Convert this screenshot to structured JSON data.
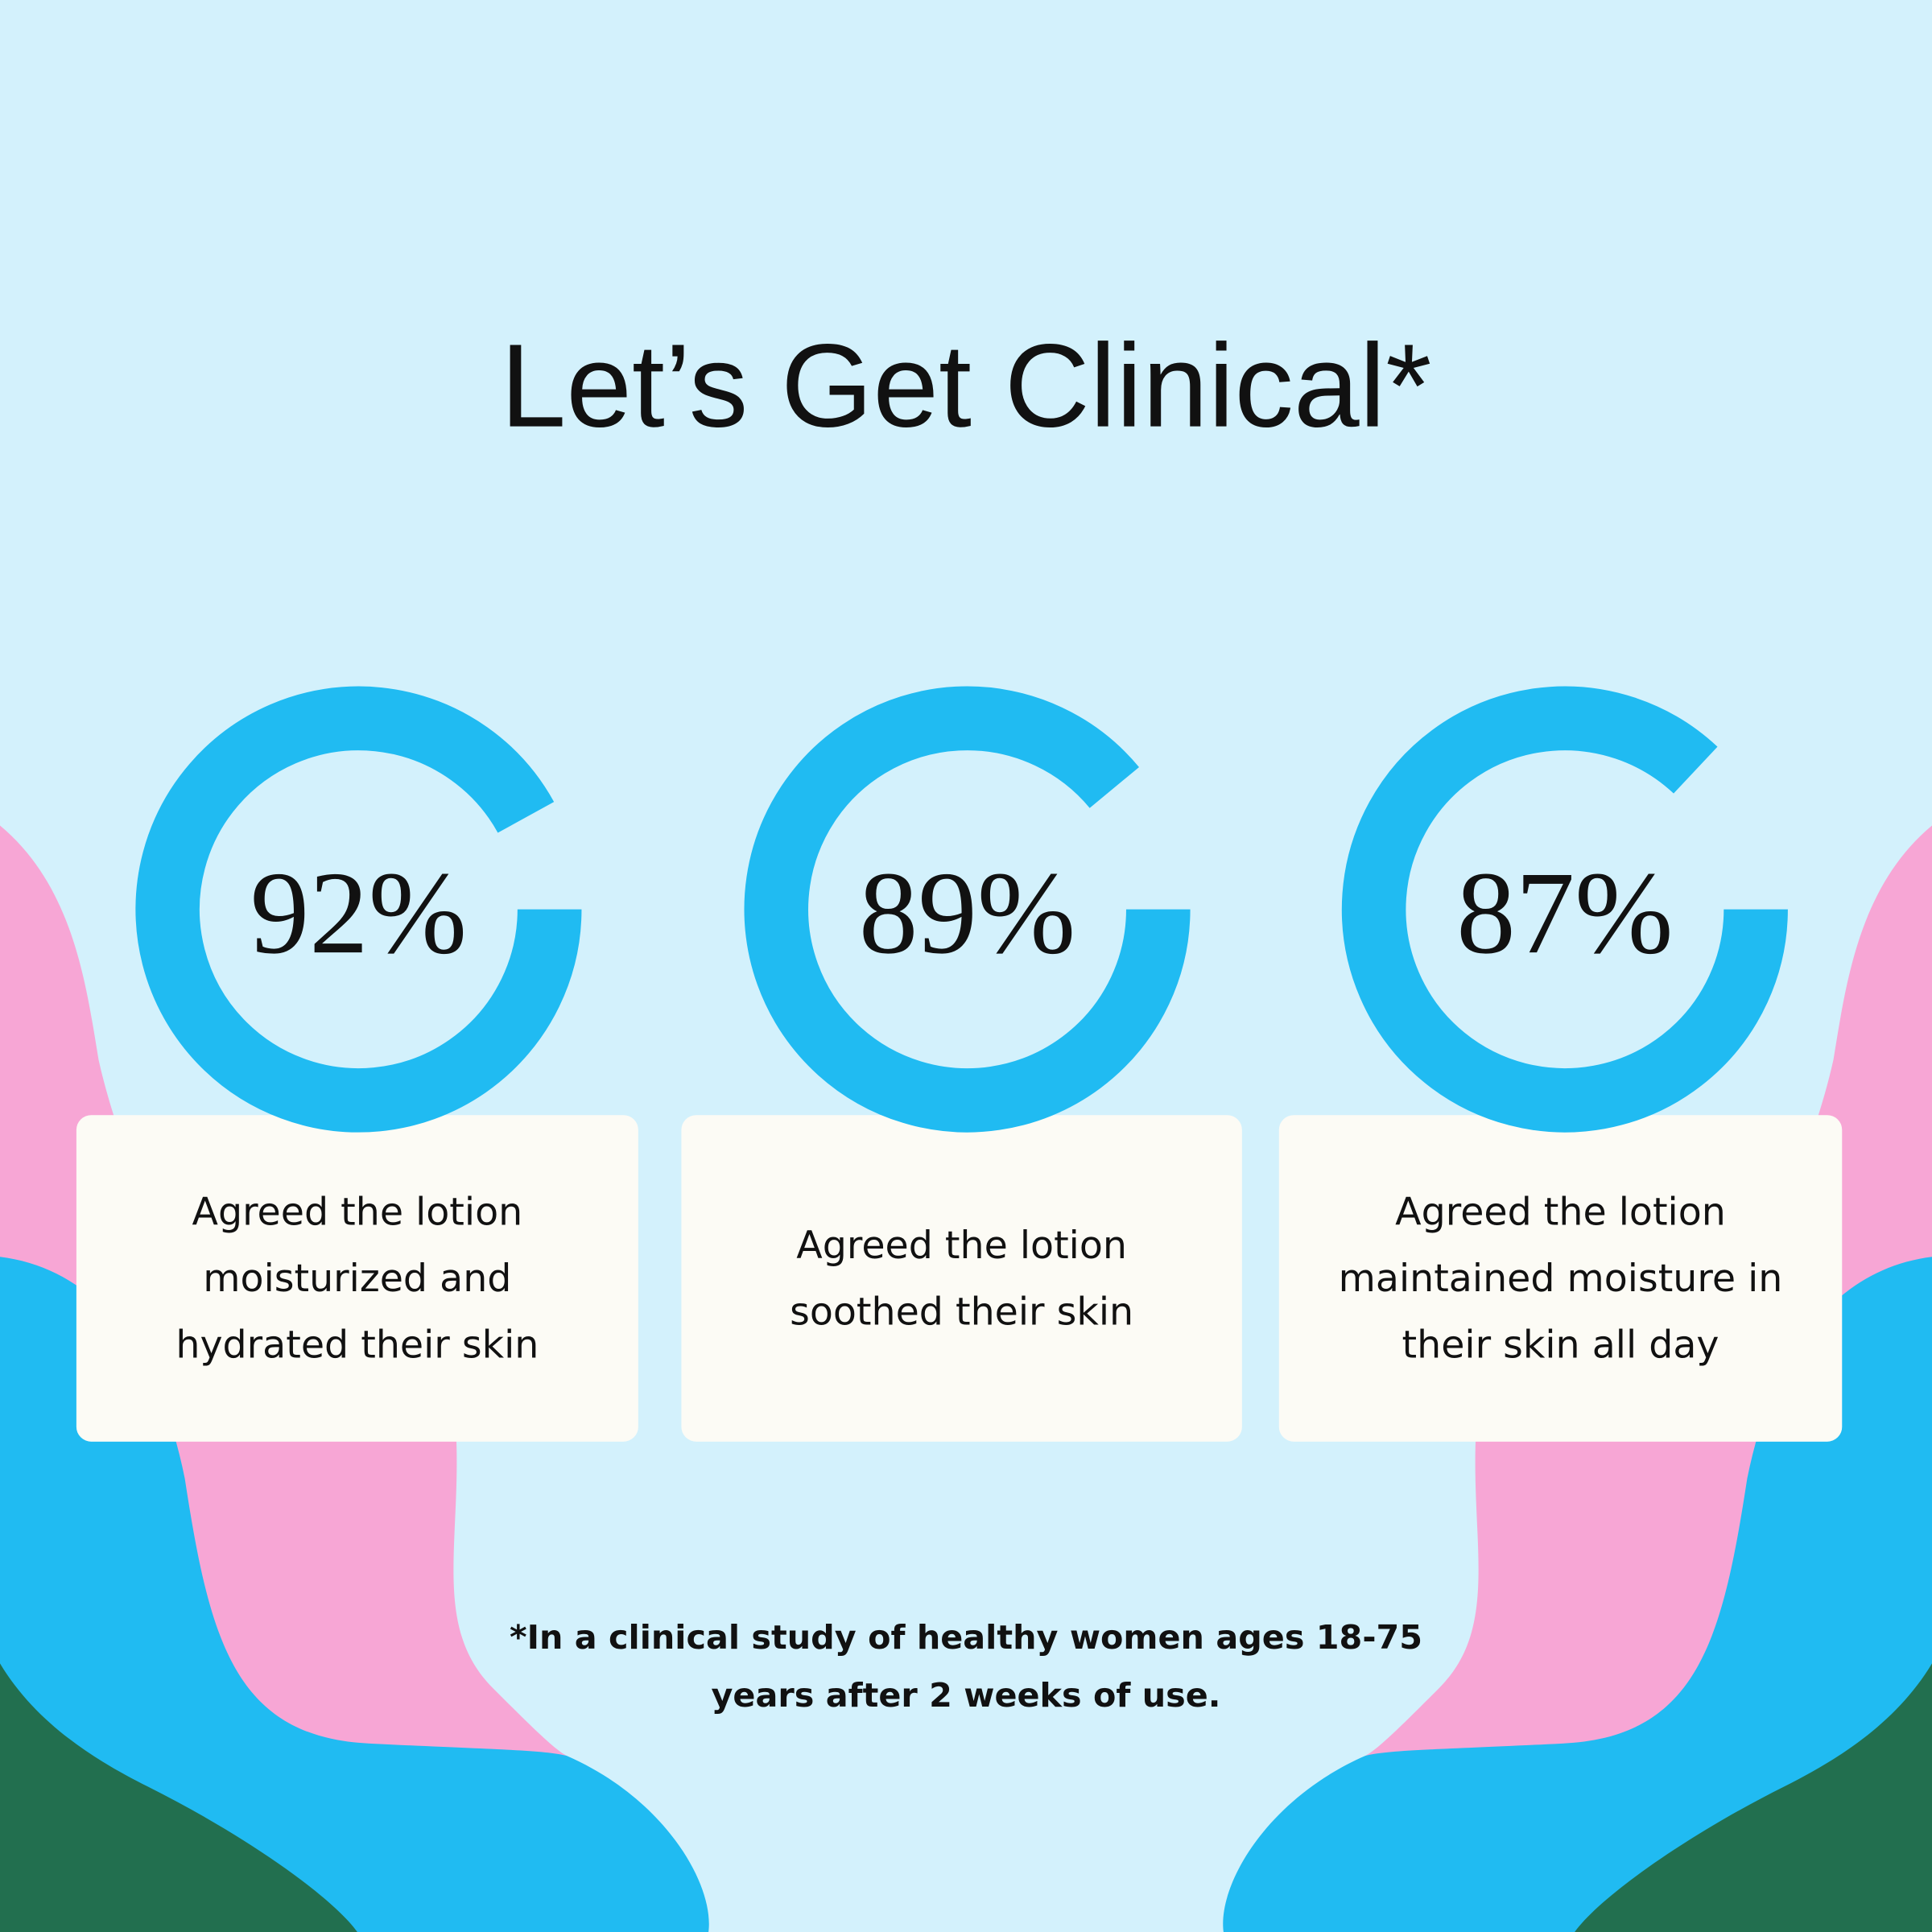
{
  "chart_data": {
    "type": "ring",
    "title": "Let’s Get Clinical*",
    "categories": [
      "Agreed the lotion moisturized and hydrated their skin",
      "Agreed the lotion soothed their skin",
      "Agreed the lotion maintained moisture in their skin all day"
    ],
    "values": [
      92,
      89,
      87
    ],
    "value_labels": [
      "92%",
      "89%",
      "87%"
    ],
    "color": "#20bbf2",
    "note": "*In a clinical study of healthy women ages 18-75 years after 2 weeks of use."
  }
}
